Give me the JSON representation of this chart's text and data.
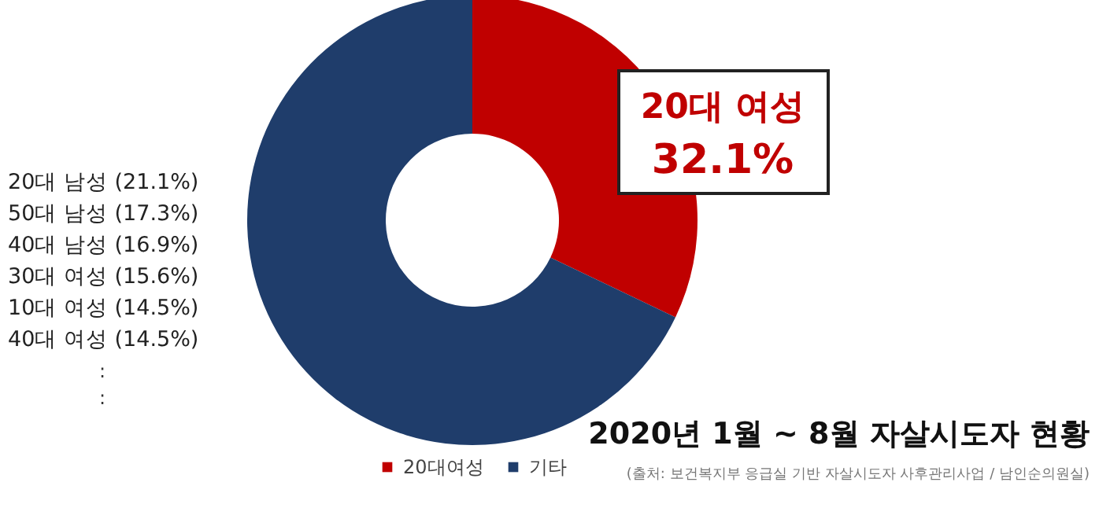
{
  "chart_data": {
    "type": "donut",
    "title": "2020년 1월 ~ 8월 자살시도자 현황",
    "categories": [
      "20대여성",
      "기타"
    ],
    "values": [
      32.1,
      67.9
    ],
    "colors": [
      "#c00000",
      "#1f3d6b"
    ],
    "value_labels": [
      "32.1%",
      null
    ],
    "legend": "bottom",
    "annotations": [
      "20대 남성 (21.1%)",
      "50대 남성 (17.3%)",
      "40대 남성 (16.9%)",
      "30대 여성 (15.6%)",
      "10대 여성 (14.5%)",
      "40대 여성 (14.5%)",
      ":",
      ":",
      "(출처: 보건복지부 응급실 기반 자살시도자 사후관리사업 / 남인순의원실)",
      "20대 여성"
    ]
  }
}
